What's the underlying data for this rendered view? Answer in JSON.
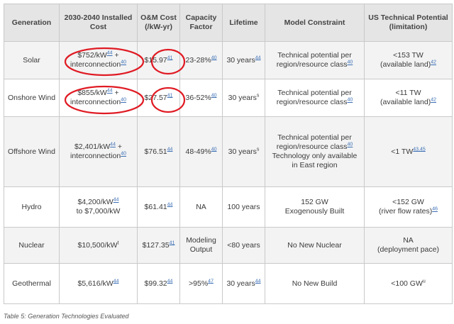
{
  "headers": {
    "generation": "Generation",
    "installed_cost": "2030-2040 Installed Cost",
    "om_cost": "O&M Cost (/kW-yr)",
    "capacity_factor": "Capacity Factor",
    "lifetime": "Lifetime",
    "model_constraint": "Model Constraint",
    "us_potential": "US Technical Potential (limitation)"
  },
  "rows": [
    {
      "generation": "Solar",
      "installed_cost_a": "$752/kW",
      "installed_cost_a_ref": "44",
      "installed_cost_a_tail": " +",
      "installed_cost_b": "interconnection",
      "installed_cost_b_ref": "40",
      "om_cost": "$15.97",
      "om_cost_ref": "41",
      "capacity_factor": "23-28%",
      "capacity_factor_ref": "40",
      "lifetime": "30 years",
      "lifetime_ref": "44",
      "constraint_a": "Technical potential per",
      "constraint_b": "region/resource class",
      "constraint_ref": "40",
      "potential_a": "<153 TW",
      "potential_b": "(available land)",
      "potential_ref": "42"
    },
    {
      "generation": "Onshore Wind",
      "installed_cost_a": "$855/kW",
      "installed_cost_a_ref": "44",
      "installed_cost_a_tail": " +",
      "installed_cost_b": "interconnection",
      "installed_cost_b_ref": "40",
      "om_cost": "$27.57",
      "om_cost_ref": "41",
      "capacity_factor": "36-52%",
      "capacity_factor_ref": "40",
      "lifetime": "30 years",
      "lifetime_ref": "s",
      "constraint_a": "Technical potential per",
      "constraint_b": "region/resource class",
      "constraint_ref": "40",
      "potential_a": "<11 TW",
      "potential_b": "(available land)",
      "potential_ref": "42"
    },
    {
      "generation": "Offshore Wind",
      "installed_cost_a": "$2,401/kW",
      "installed_cost_a_ref": "44",
      "installed_cost_a_tail": " +",
      "installed_cost_b": "interconnection",
      "installed_cost_b_ref": "40",
      "om_cost": "$76.51",
      "om_cost_ref": "44",
      "capacity_factor": "48-49%",
      "capacity_factor_ref": "40",
      "lifetime": "30 years",
      "lifetime_ref": "s",
      "constraint_a": "Technical potential per",
      "constraint_b": "region/resource class",
      "constraint_ref": "40",
      "constraint_c": "Technology only available",
      "constraint_d": "in East region",
      "potential_a": "<1 TW",
      "potential_ref": "43,45"
    },
    {
      "generation": "Hydro",
      "installed_cost_a": "$4,200/kW",
      "installed_cost_a_ref": "44",
      "installed_cost_b": "to $7,000/kW",
      "om_cost": "$61.41",
      "om_cost_ref": "44",
      "capacity_factor": "NA",
      "lifetime": "100 years",
      "constraint_a": "152 GW",
      "constraint_b": "Exogenously Built",
      "potential_a": "<152 GW",
      "potential_b": "(river flow rates)",
      "potential_ref": "46"
    },
    {
      "generation": "Nuclear",
      "installed_cost_a": "$10,500/kW",
      "installed_cost_a_ref": "t",
      "om_cost": "$127.35",
      "om_cost_ref": "41",
      "capacity_factor_a": "Modeling",
      "capacity_factor_b": "Output",
      "lifetime": "<80 years",
      "constraint_a": "No New Nuclear",
      "potential_a": "NA",
      "potential_b": "(deployment pace)"
    },
    {
      "generation": "Geothermal",
      "installed_cost_a": "$5,616/kW",
      "installed_cost_a_ref": "44",
      "om_cost": "$99.32",
      "om_cost_ref": "44",
      "capacity_factor": ">95%",
      "capacity_factor_ref": "47",
      "lifetime": "30 years",
      "lifetime_ref": "44",
      "constraint_a": "No New Build",
      "potential_a": "<100 GW",
      "potential_ref": "u"
    }
  ],
  "caption": "Table 5: Generation Technologies Evaluated",
  "annotation_color": "#e01b24"
}
